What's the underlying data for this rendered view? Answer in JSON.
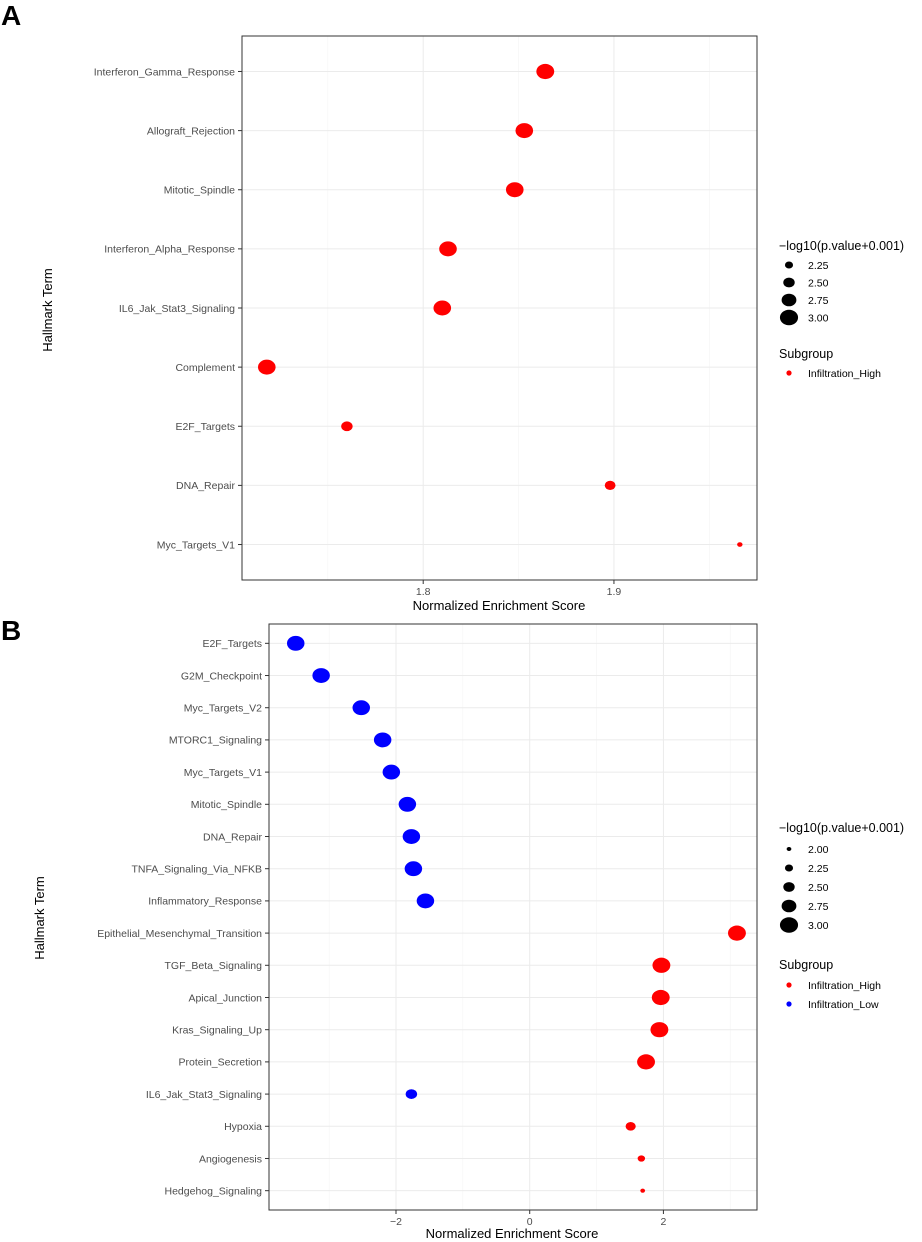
{
  "chart_data": [
    {
      "panel": "A",
      "type": "scatter",
      "xlabel": "Normalized Enrichment Score",
      "ylabel": "Hallmark Term",
      "xlim": [
        1.705,
        1.975
      ],
      "xticks": [
        1.8,
        1.9
      ],
      "xtick_labels": [
        "1.8",
        "1.9"
      ],
      "minor_xticks": [
        1.75,
        1.85,
        1.95
      ],
      "categories": [
        "Interferon_Gamma_Response",
        "Allograft_Rejection",
        "Mitotic_Spindle",
        "Interferon_Alpha_Response",
        "IL6_Jak_Stat3_Signaling",
        "Complement",
        "E2F_Targets",
        "DNA_Repair",
        "Myc_Targets_V1"
      ],
      "points": [
        {
          "term": "Interferon_Gamma_Response",
          "nes": 1.864,
          "logp": 2.98,
          "group": "Infiltration_High"
        },
        {
          "term": "Allograft_Rejection",
          "nes": 1.853,
          "logp": 2.96,
          "group": "Infiltration_High"
        },
        {
          "term": "Mitotic_Spindle",
          "nes": 1.848,
          "logp": 2.96,
          "group": "Infiltration_High"
        },
        {
          "term": "Interferon_Alpha_Response",
          "nes": 1.813,
          "logp": 2.96,
          "group": "Infiltration_High"
        },
        {
          "term": "IL6_Jak_Stat3_Signaling",
          "nes": 1.81,
          "logp": 2.96,
          "group": "Infiltration_High"
        },
        {
          "term": "Complement",
          "nes": 1.718,
          "logp": 2.96,
          "group": "Infiltration_High"
        },
        {
          "term": "E2F_Targets",
          "nes": 1.76,
          "logp": 2.5,
          "group": "Infiltration_High"
        },
        {
          "term": "DNA_Repair",
          "nes": 1.898,
          "logp": 2.45,
          "group": "Infiltration_High"
        },
        {
          "term": "Myc_Targets_V1",
          "nes": 1.966,
          "logp": 2.05,
          "group": "Infiltration_High"
        }
      ],
      "size_legend": {
        "title": "−log10(p.value+0.001)",
        "values": [
          2.25,
          2.5,
          2.75,
          3.0
        ],
        "labels": [
          "2.25",
          "2.50",
          "2.75",
          "3.00"
        ]
      },
      "color_legend": {
        "title": "Subgroup",
        "entries": [
          {
            "label": "Infiltration_High",
            "color": "#ff0000"
          }
        ]
      },
      "legend_position": "right"
    },
    {
      "panel": "B",
      "type": "scatter",
      "xlabel": "Normalized Enrichment Score",
      "ylabel": "Hallmark Term",
      "xlim": [
        -3.9,
        3.4
      ],
      "xticks": [
        -2,
        0,
        2
      ],
      "xtick_labels": [
        "−2",
        "0",
        "2"
      ],
      "minor_xticks": [
        -3,
        -1,
        1,
        3
      ],
      "categories": [
        "E2F_Targets",
        "G2M_Checkpoint",
        "Myc_Targets_V2",
        "MTORC1_Signaling",
        "Myc_Targets_V1",
        "Mitotic_Spindle",
        "DNA_Repair",
        "TNFA_Signaling_Via_NFKB",
        "Inflammatory_Response",
        "Epithelial_Mesenchymal_Transition",
        "TGF_Beta_Signaling",
        "Apical_Junction",
        "Kras_Signaling_Up",
        "Protein_Secretion",
        "IL6_Jak_Stat3_Signaling",
        "Hypoxia",
        "Angiogenesis",
        "Hedgehog_Signaling"
      ],
      "points": [
        {
          "term": "E2F_Targets",
          "nes": -3.5,
          "logp": 2.95,
          "group": "Infiltration_Low"
        },
        {
          "term": "G2M_Checkpoint",
          "nes": -3.12,
          "logp": 2.95,
          "group": "Infiltration_Low"
        },
        {
          "term": "Myc_Targets_V2",
          "nes": -2.52,
          "logp": 2.95,
          "group": "Infiltration_Low"
        },
        {
          "term": "MTORC1_Signaling",
          "nes": -2.2,
          "logp": 2.95,
          "group": "Infiltration_Low"
        },
        {
          "term": "Myc_Targets_V1",
          "nes": -2.07,
          "logp": 2.95,
          "group": "Infiltration_Low"
        },
        {
          "term": "Mitotic_Spindle",
          "nes": -1.83,
          "logp": 2.95,
          "group": "Infiltration_Low"
        },
        {
          "term": "DNA_Repair",
          "nes": -1.77,
          "logp": 2.95,
          "group": "Infiltration_Low"
        },
        {
          "term": "TNFA_Signaling_Via_NFKB",
          "nes": -1.74,
          "logp": 2.95,
          "group": "Infiltration_Low"
        },
        {
          "term": "Inflammatory_Response",
          "nes": -1.56,
          "logp": 2.95,
          "group": "Infiltration_Low"
        },
        {
          "term": "Epithelial_Mesenchymal_Transition",
          "nes": 3.1,
          "logp": 2.98,
          "group": "Infiltration_High"
        },
        {
          "term": "TGF_Beta_Signaling",
          "nes": 1.97,
          "logp": 2.98,
          "group": "Infiltration_High"
        },
        {
          "term": "Apical_Junction",
          "nes": 1.96,
          "logp": 2.98,
          "group": "Infiltration_High"
        },
        {
          "term": "Kras_Signaling_Up",
          "nes": 1.94,
          "logp": 2.98,
          "group": "Infiltration_High"
        },
        {
          "term": "Protein_Secretion",
          "nes": 1.74,
          "logp": 2.98,
          "group": "Infiltration_High"
        },
        {
          "term": "IL6_Jak_Stat3_Signaling",
          "nes": -1.77,
          "logp": 2.5,
          "group": "Infiltration_Low"
        },
        {
          "term": "Hypoxia",
          "nes": 1.51,
          "logp": 2.4,
          "group": "Infiltration_High"
        },
        {
          "term": "Angiogenesis",
          "nes": 1.67,
          "logp": 2.2,
          "group": "Infiltration_High"
        },
        {
          "term": "Hedgehog_Signaling",
          "nes": 1.69,
          "logp": 2.0,
          "group": "Infiltration_High"
        }
      ],
      "size_legend": {
        "title": "−log10(p.value+0.001)",
        "values": [
          2.0,
          2.25,
          2.5,
          2.75,
          3.0
        ],
        "labels": [
          "2.00",
          "2.25",
          "2.50",
          "2.75",
          "3.00"
        ]
      },
      "color_legend": {
        "title": "Subgroup",
        "entries": [
          {
            "label": "Infiltration_High",
            "color": "#ff0000"
          },
          {
            "label": "Infiltration_Low",
            "color": "#0000ff"
          }
        ]
      },
      "legend_position": "right"
    }
  ],
  "panel_labels": [
    "A",
    "B"
  ],
  "group_colors": {
    "Infiltration_High": "#ff0000",
    "Infiltration_Low": "#0000ff"
  }
}
